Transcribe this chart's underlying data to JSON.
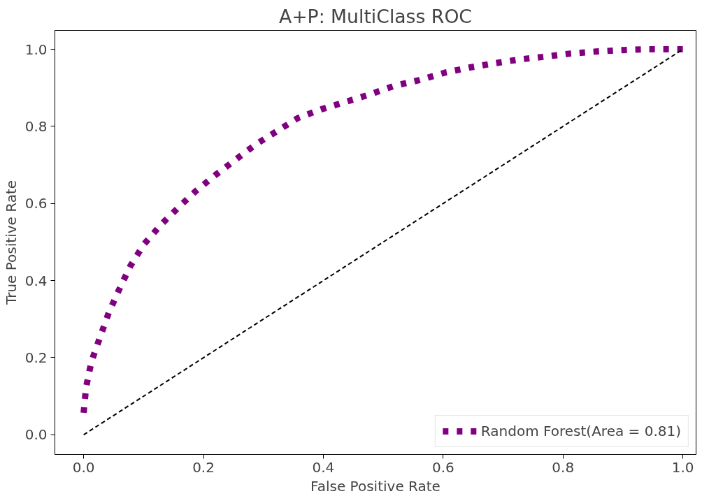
{
  "chart_data": {
    "type": "line",
    "title": "A+P: MultiClass ROC",
    "xlabel": "False Positive Rate",
    "ylabel": "True Positive Rate",
    "xlim": [
      -0.048,
      1.022
    ],
    "ylim": [
      -0.051,
      1.049
    ],
    "xticks": [
      {
        "value": 0,
        "label": "0.0"
      },
      0.2,
      0.4,
      0.6,
      0.8,
      {
        "value": 1,
        "label": "1.0"
      }
    ],
    "yticks": [
      {
        "value": 0,
        "label": "0.0"
      },
      0.2,
      0.4,
      0.6,
      0.8,
      {
        "value": 1,
        "label": "1.0"
      }
    ],
    "grid": false,
    "legend": "bottom right",
    "marker": "none",
    "series": [
      {
        "name": "Random Forest(Area = 0.81)",
        "color": "#800080",
        "line_style": "dotted",
        "x": [
          0,
          0.004,
          0.013,
          0.028,
          0.042,
          0.059,
          0.078,
          0.1,
          0.129,
          0.157,
          0.187,
          0.22,
          0.253,
          0.287,
          0.322,
          0.358,
          0.396,
          0.436,
          0.476,
          0.518,
          0.56,
          0.602,
          0.645,
          0.687,
          0.729,
          0.771,
          0.813,
          0.855,
          0.898,
          0.94,
          1
        ],
        "values": [
          0.057,
          0.123,
          0.19,
          0.256,
          0.317,
          0.376,
          0.438,
          0.493,
          0.545,
          0.588,
          0.632,
          0.674,
          0.713,
          0.753,
          0.787,
          0.822,
          0.844,
          0.863,
          0.882,
          0.905,
          0.92,
          0.939,
          0.953,
          0.964,
          0.974,
          0.981,
          0.989,
          0.994,
          0.998,
          1,
          1
        ]
      },
      {
        "color": "#000000",
        "line_style": "dashed",
        "x": [
          0,
          1
        ],
        "values": [
          0,
          1
        ]
      }
    ]
  }
}
